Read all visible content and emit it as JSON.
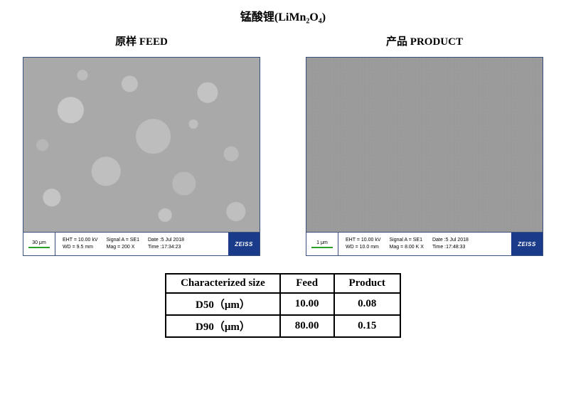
{
  "title": {
    "cn": "锰酸锂",
    "formula_pre": "(LiMn",
    "formula_sub1": "2",
    "formula_mid": "O",
    "formula_sub2": "4",
    "formula_post": ")"
  },
  "images": {
    "feed": {
      "label": "原样 FEED",
      "scale_label": "30 μm",
      "params": {
        "eht": "EHT = 10.00 kV",
        "wd": "WD = 9.5 mm",
        "signal": "Signal A = SE1",
        "mag": "Mag =    200 X",
        "date": "Date :5 Jul 2018",
        "time": "Time :17:34:23"
      },
      "brand": "ZEISS"
    },
    "product": {
      "label": "产品 PRODUCT",
      "scale_label": "1 μm",
      "params": {
        "eht": "EHT = 10.00 kV",
        "wd": "WD = 10.0 mm",
        "signal": "Signal A = SE1",
        "mag": "Mag =  8.00 K X",
        "date": "Date :5 Jul 2018",
        "time": "Time :17:48:33"
      },
      "brand": "ZEISS"
    }
  },
  "table": {
    "headers": [
      "Characterized size",
      "Feed",
      "Product"
    ],
    "rows": [
      {
        "label": "D50（μm）",
        "feed": "10.00",
        "product": "0.08"
      },
      {
        "label": "D90（μm）",
        "feed": "80.00",
        "product": "0.15"
      }
    ]
  }
}
